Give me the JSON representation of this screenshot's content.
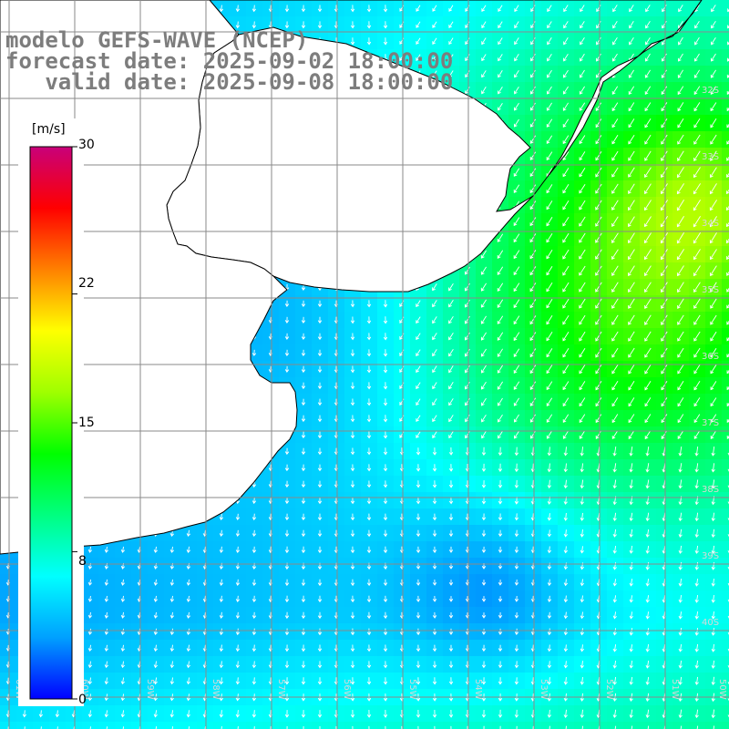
{
  "title": {
    "line1": "modelo GEFS-WAVE (NCEP)",
    "line2": "forecast date: 2025-09-02 18:00:00",
    "line3": "   valid date: 2025-09-08 18:00:00"
  },
  "colorbar": {
    "unit": "[m/s]",
    "tick_labels": [
      "30",
      "22",
      "15",
      "8",
      "0"
    ],
    "tick_values": [
      30,
      22,
      15,
      8,
      0
    ],
    "min": 0,
    "max": 30,
    "stops": [
      "#0000ff",
      "#00a0ff",
      "#00ffff",
      "#00ff80",
      "#00ff00",
      "#a0ff00",
      "#ffff00",
      "#ff8000",
      "#ff0000",
      "#c8007a"
    ]
  },
  "map": {
    "lat_labels": [
      "32S",
      "33S",
      "34S",
      "35S",
      "36S",
      "37S",
      "38S",
      "39S",
      "40S"
    ],
    "lon_labels": [
      "61W",
      "60W",
      "59W",
      "58W",
      "57W",
      "56W",
      "55W",
      "54W",
      "53W",
      "52W",
      "51W",
      "50W"
    ],
    "coastline_color": "#000000",
    "land_color": "#ffffff",
    "grid_color": "#8a8a8a",
    "arrow_color": "#ffffff"
  }
}
